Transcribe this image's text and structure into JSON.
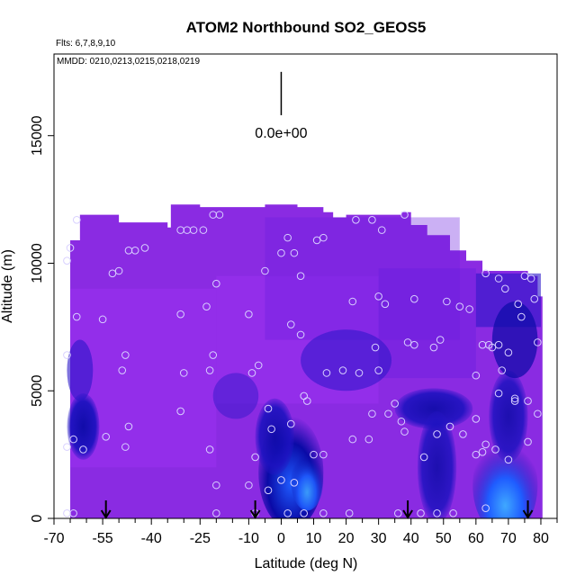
{
  "chart_data": {
    "type": "heatmap",
    "title": "ATOM2 Northbound SO2_GEOS5",
    "flights_label": "Flts: 6,7,8,9,10",
    "dates_label": "MMDD: 0210,0213,0215,0218,0219",
    "xlabel": "Latitude (deg N)",
    "ylabel": "Altitude (m)",
    "xlim": [
      -70,
      85
    ],
    "ylim": [
      0,
      18200
    ],
    "x_ticks": [
      -70,
      -55,
      -40,
      -25,
      -10,
      0,
      10,
      20,
      30,
      40,
      50,
      60,
      70,
      80
    ],
    "x_minor_ticks": [
      -65,
      -60,
      -50,
      -45,
      -35,
      -30,
      -20,
      -15,
      -5,
      5,
      15,
      25,
      35,
      45,
      55,
      65,
      75,
      85
    ],
    "y_ticks": [
      0,
      5000,
      10000,
      15000
    ],
    "colorbar_label": "0.0e+00",
    "colorbar_x": 0,
    "colorbar_y_range": [
      15800,
      17500
    ],
    "colors": {
      "background": "#8a2be2",
      "light_purple": "#9a32f0",
      "medium_purple": "#6a1ee0",
      "dark_blue": "#2a16c8",
      "navy": "#0a0aa6",
      "blue": "#1f5cff",
      "light_blue": "#3fa8ff",
      "points": "#d8d0ff"
    },
    "sounding_arrows_x": [
      -54,
      -8,
      39,
      76
    ],
    "observations": [
      [
        -66,
        10100
      ],
      [
        -65,
        10600
      ],
      [
        -63,
        11700
      ],
      [
        -66,
        6400
      ],
      [
        -63,
        7900
      ],
      [
        -66,
        2800
      ],
      [
        -64,
        3100
      ],
      [
        -61,
        2700
      ],
      [
        -66,
        200
      ],
      [
        -64,
        200
      ],
      [
        -55,
        7800
      ],
      [
        -52,
        9600
      ],
      [
        -50,
        9700
      ],
      [
        -47,
        10500
      ],
      [
        -45,
        10500
      ],
      [
        -42,
        10600
      ],
      [
        -48,
        6400
      ],
      [
        -49,
        5800
      ],
      [
        -47,
        3600
      ],
      [
        -48,
        2800
      ],
      [
        -54,
        3200
      ],
      [
        -31,
        11300
      ],
      [
        -29,
        11300
      ],
      [
        -27,
        11300
      ],
      [
        -24,
        11300
      ],
      [
        -21,
        11900
      ],
      [
        -19,
        11900
      ],
      [
        -31,
        8000
      ],
      [
        -30,
        5700
      ],
      [
        -23,
        8300
      ],
      [
        -22,
        5800
      ],
      [
        -21,
        6400
      ],
      [
        -22,
        2700
      ],
      [
        -20,
        9200
      ],
      [
        -31,
        4200
      ],
      [
        -10,
        8000
      ],
      [
        -9,
        5700
      ],
      [
        -7,
        6000
      ],
      [
        -5,
        9700
      ],
      [
        0,
        10400
      ],
      [
        4,
        10400
      ],
      [
        2,
        11000
      ],
      [
        -4,
        4300
      ],
      [
        -3,
        3500
      ],
      [
        -8,
        2400
      ],
      [
        -4,
        1100
      ],
      [
        0,
        1500
      ],
      [
        4,
        1400
      ],
      [
        7,
        4800
      ],
      [
        8,
        4600
      ],
      [
        3,
        3700
      ],
      [
        3,
        7600
      ],
      [
        6,
        7200
      ],
      [
        6,
        9500
      ],
      [
        11,
        10900
      ],
      [
        13,
        11000
      ],
      [
        14,
        5700
      ],
      [
        10,
        2500
      ],
      [
        -20,
        200
      ],
      [
        -8,
        200
      ],
      [
        2,
        200
      ],
      [
        7,
        200
      ],
      [
        13,
        200
      ],
      [
        21,
        200
      ],
      [
        -20,
        1300
      ],
      [
        -10,
        1300
      ],
      [
        23,
        11700
      ],
      [
        28,
        11700
      ],
      [
        31,
        11300
      ],
      [
        38,
        11900
      ],
      [
        22,
        8500
      ],
      [
        30,
        8700
      ],
      [
        32,
        8400
      ],
      [
        41,
        8600
      ],
      [
        29,
        6700
      ],
      [
        35,
        4500
      ],
      [
        37,
        3800
      ],
      [
        38,
        3400
      ],
      [
        33,
        4100
      ],
      [
        28,
        4100
      ],
      [
        22,
        3100
      ],
      [
        27,
        3100
      ],
      [
        24,
        5700
      ],
      [
        30,
        5800
      ],
      [
        19,
        5800
      ],
      [
        13,
        2500
      ],
      [
        39,
        6900
      ],
      [
        41,
        6800
      ],
      [
        47,
        6700
      ],
      [
        49,
        7000
      ],
      [
        51,
        8500
      ],
      [
        55,
        8300
      ],
      [
        58,
        8200
      ],
      [
        48,
        3300
      ],
      [
        52,
        3600
      ],
      [
        56,
        3300
      ],
      [
        60,
        2500
      ],
      [
        62,
        2600
      ],
      [
        60,
        3900
      ],
      [
        44,
        2400
      ],
      [
        36,
        200
      ],
      [
        43,
        200
      ],
      [
        48,
        200
      ],
      [
        53,
        200
      ],
      [
        63,
        9600
      ],
      [
        67,
        9400
      ],
      [
        69,
        9000
      ],
      [
        73,
        8400
      ],
      [
        74,
        7900
      ],
      [
        75,
        9500
      ],
      [
        77,
        9400
      ],
      [
        78,
        8600
      ],
      [
        60,
        5600
      ],
      [
        62,
        6800
      ],
      [
        64,
        6800
      ],
      [
        65,
        6700
      ],
      [
        67,
        6800
      ],
      [
        68,
        5800
      ],
      [
        70,
        6500
      ],
      [
        72,
        4700
      ],
      [
        67,
        4900
      ],
      [
        72,
        4600
      ],
      [
        76,
        4600
      ],
      [
        79,
        4100
      ],
      [
        79,
        6900
      ],
      [
        63,
        2900
      ],
      [
        66,
        2700
      ],
      [
        70,
        2300
      ],
      [
        76,
        3000
      ],
      [
        63,
        400
      ]
    ]
  }
}
